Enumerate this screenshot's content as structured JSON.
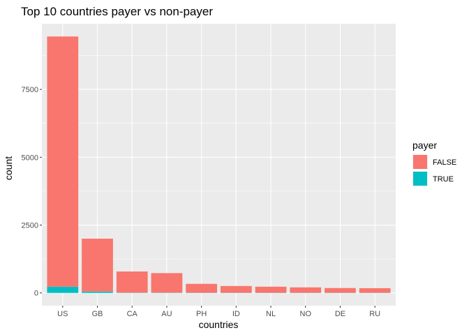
{
  "chart_data": {
    "type": "bar",
    "stacked": true,
    "title": "Top 10 countries payer vs non-payer",
    "xlabel": "countries",
    "ylabel": "count",
    "categories": [
      "US",
      "GB",
      "CA",
      "AU",
      "PH",
      "ID",
      "NL",
      "NO",
      "DE",
      "RU"
    ],
    "series": [
      {
        "name": "FALSE",
        "color": "#F8766D",
        "values": [
          9220,
          1950,
          780,
          720,
          330,
          250,
          225,
          200,
          175,
          170
        ]
      },
      {
        "name": "TRUE",
        "color": "#00BFC4",
        "values": [
          230,
          50,
          10,
          10,
          5,
          5,
          5,
          5,
          5,
          5
        ]
      }
    ],
    "ylim": [
      -470,
      9920
    ],
    "yticks": [
      0,
      2500,
      5000,
      7500
    ],
    "ytick_labels": [
      "0",
      "2500",
      "5000",
      "7500"
    ],
    "legend": {
      "title": "payer",
      "position": "right"
    },
    "grid": true,
    "panel_background": "#EBEBEB"
  }
}
